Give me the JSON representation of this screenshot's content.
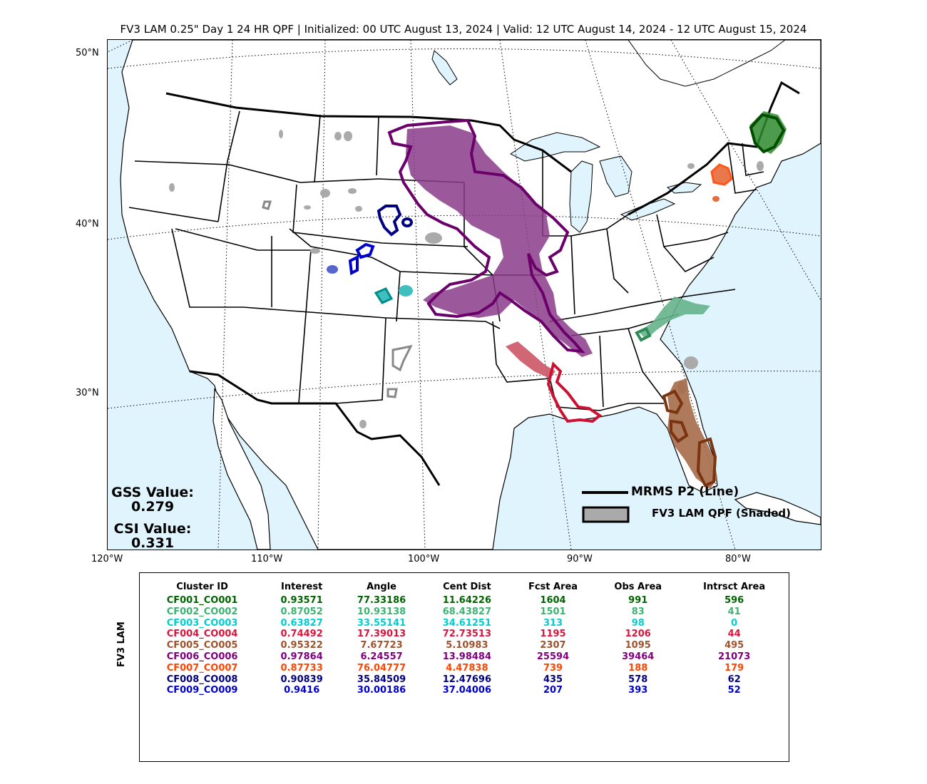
{
  "title": "FV3 LAM 0.25\" Day 1 24 HR QPF | Initialized: 00 UTC August 13, 2024 | Valid: 12 UTC August 14, 2024 - 12 UTC August 15, 2024",
  "map": {
    "lat_labels": [
      "50°N",
      "40°N",
      "30°N"
    ],
    "lon_labels": [
      "120°W",
      "110°W",
      "100°W",
      "90°W",
      "80°W"
    ],
    "colors": {
      "ocean": "#dff4fc",
      "land": "#ffffff",
      "unmatched": "#aaaaaa"
    }
  },
  "scores": {
    "gss_label": "GSS Value:",
    "gss_value": "0.279",
    "csi_label": "CSI Value:",
    "csi_value": "0.331"
  },
  "legend": {
    "line_label": "MRMS P2 (Line)",
    "shaded_label": "FV3 LAM QPF (Shaded)"
  },
  "table": {
    "side_label": "FV3 LAM",
    "columns": [
      "Cluster ID",
      "Interest",
      "Angle",
      "Cent Dist",
      "Fcst Area",
      "Obs Area",
      "Intrsct Area"
    ],
    "rows": [
      {
        "color": "#006400",
        "cells": [
          "CF001_CO001",
          "0.93571",
          "77.33186",
          "11.64226",
          "1604",
          "991",
          "596"
        ]
      },
      {
        "color": "#3cb371",
        "cells": [
          "CF002_CO002",
          "0.87052",
          "10.93138",
          "68.43827",
          "1501",
          "83",
          "41"
        ]
      },
      {
        "color": "#00ced1",
        "cells": [
          "CF003_CO003",
          "0.63827",
          "33.55141",
          "34.61251",
          "313",
          "98",
          "0"
        ]
      },
      {
        "color": "#dc143c",
        "cells": [
          "CF004_CO004",
          "0.74492",
          "17.39013",
          "72.73513",
          "1195",
          "1206",
          "44"
        ]
      },
      {
        "color": "#a0522d",
        "cells": [
          "CF005_CO005",
          "0.95322",
          "7.67723",
          "5.10983",
          "2307",
          "1095",
          "495"
        ]
      },
      {
        "color": "#800080",
        "cells": [
          "CF006_CO006",
          "0.97864",
          "6.24557",
          "13.98484",
          "25594",
          "39464",
          "21073"
        ]
      },
      {
        "color": "#ff4500",
        "cells": [
          "CF007_CO007",
          "0.87733",
          "76.04777",
          "4.47838",
          "739",
          "188",
          "179"
        ]
      },
      {
        "color": "#000080",
        "cells": [
          "CF008_CO008",
          "0.90839",
          "35.84509",
          "12.47696",
          "435",
          "578",
          "62"
        ]
      },
      {
        "color": "#0000cd",
        "cells": [
          "CF009_CO009",
          "0.9416",
          "30.00186",
          "37.04006",
          "207",
          "393",
          "52"
        ]
      }
    ]
  }
}
